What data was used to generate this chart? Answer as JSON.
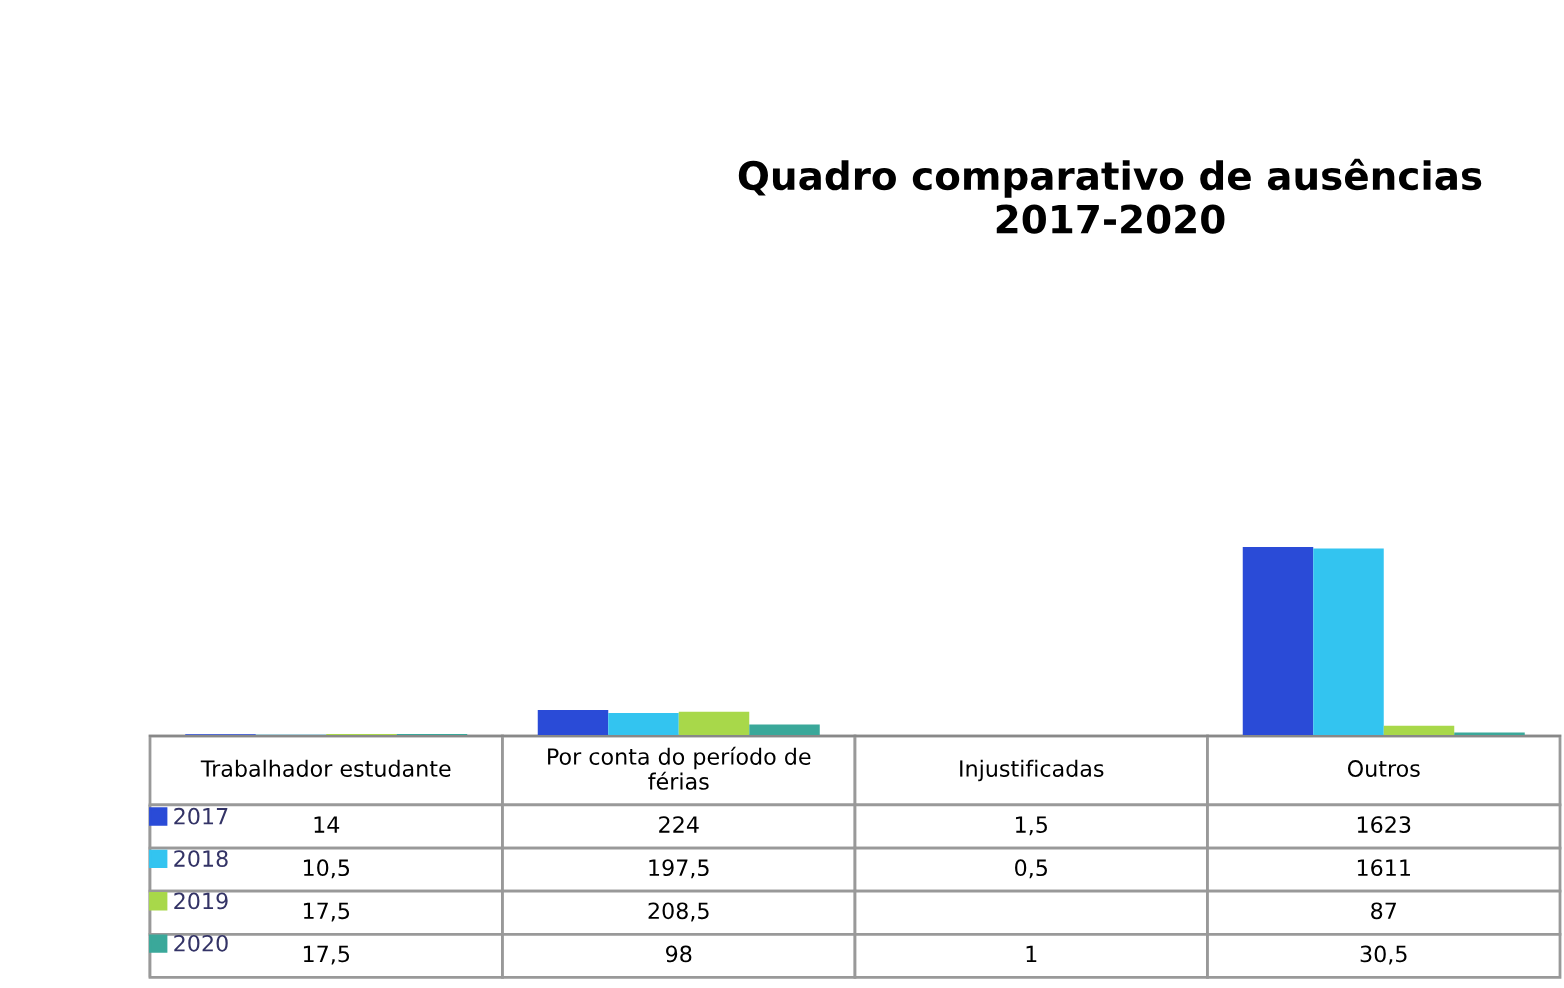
{
  "chart_data": {
    "type": "bar",
    "title": "Quadro comparativo de ausências\n2017-2020",
    "categories": [
      "Trabalhador estudante",
      "Por conta do período de férias",
      "Injustificadas",
      "Outros"
    ],
    "series": [
      {
        "name": "2017",
        "color": "#2a4bd7",
        "values": [
          14,
          224,
          1.5,
          1623
        ],
        "value_labels": [
          "14",
          "224",
          "1,5",
          "1623"
        ]
      },
      {
        "name": "2018",
        "color": "#33c4f0",
        "values": [
          10.5,
          197.5,
          0.5,
          1611
        ],
        "value_labels": [
          "10,5",
          "197,5",
          "0,5",
          "1611"
        ]
      },
      {
        "name": "2019",
        "color": "#a8d84a",
        "values": [
          17.5,
          208.5,
          null,
          87
        ],
        "value_labels": [
          "17,5",
          "208,5",
          null,
          "87"
        ]
      },
      {
        "name": "2020",
        "color": "#3aa89a",
        "values": [
          17.5,
          98,
          1,
          30.5
        ],
        "value_labels": [
          "17,5",
          "98",
          "1",
          "30,5"
        ]
      }
    ],
    "legend": "bottom left"
  }
}
